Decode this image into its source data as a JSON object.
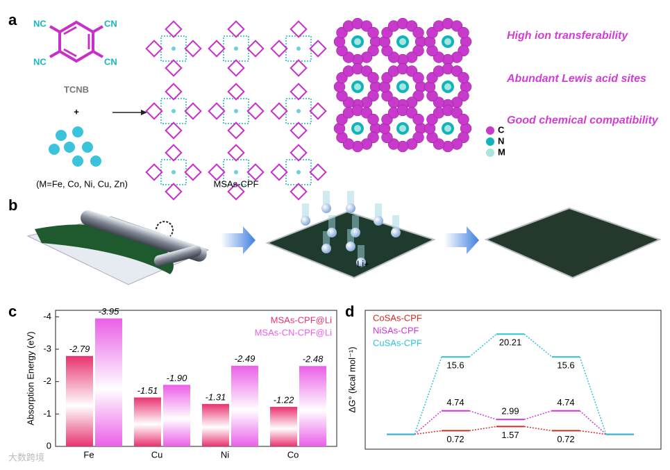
{
  "panel_a": {
    "label": "a",
    "substituents": [
      "NC",
      "CN",
      "NC",
      "CN"
    ],
    "reactant": "TCNB",
    "plus": "+",
    "metals": "(M=Fe, Co, Ni, Cu, Zn)",
    "product": "MSAs-CPF",
    "features": [
      "High ion transferability",
      "Abundant Lewis acid sites",
      "Good chemical compatibility"
    ],
    "atom_legend": [
      "C",
      "N",
      "M"
    ]
  },
  "panel_b": {
    "label": "b",
    "ion": "Li+"
  },
  "watermark": "大数跨境",
  "chart_data": [
    {
      "type": "bar",
      "panel_label": "c",
      "ylabel": "Absorption Energy (eV)",
      "categories": [
        "Fe",
        "Cu",
        "Ni",
        "Co"
      ],
      "series": [
        {
          "name": "MSAs-CPF@Li",
          "color": "#e8336f",
          "values": [
            -2.79,
            -1.51,
            -1.31,
            -1.22
          ],
          "value_labels": [
            "-2.79",
            "-1.51",
            "-1.31",
            "-1.22"
          ]
        },
        {
          "name": "MSAs-CN-CPF@Li",
          "color": "#ea5fe8",
          "values": [
            -3.95,
            -1.9,
            -2.49,
            -2.48
          ],
          "value_labels": [
            "-3.95",
            "-1.90",
            "-2.49",
            "-2.48"
          ]
        }
      ],
      "ylim": [
        0,
        -4.2
      ],
      "yticks": [
        0,
        -1,
        -2,
        -3,
        -4
      ]
    },
    {
      "type": "energy",
      "panel_label": "d",
      "ylabel": "ΔG° (kcal mol⁻¹)",
      "series": [
        {
          "name": "CoSAs-CPF",
          "color": "#d42a1e",
          "values": [
            0,
            0.72,
            1.57,
            0.72,
            0
          ]
        },
        {
          "name": "NiSAs-CPF",
          "color": "#d033d6",
          "values": [
            0,
            4.74,
            2.99,
            4.74,
            0
          ]
        },
        {
          "name": "CuSAs-CPF",
          "color": "#2ec4d6",
          "values": [
            0,
            15.6,
            20.21,
            15.6,
            0
          ]
        }
      ],
      "ylim": [
        -3,
        25
      ]
    }
  ]
}
